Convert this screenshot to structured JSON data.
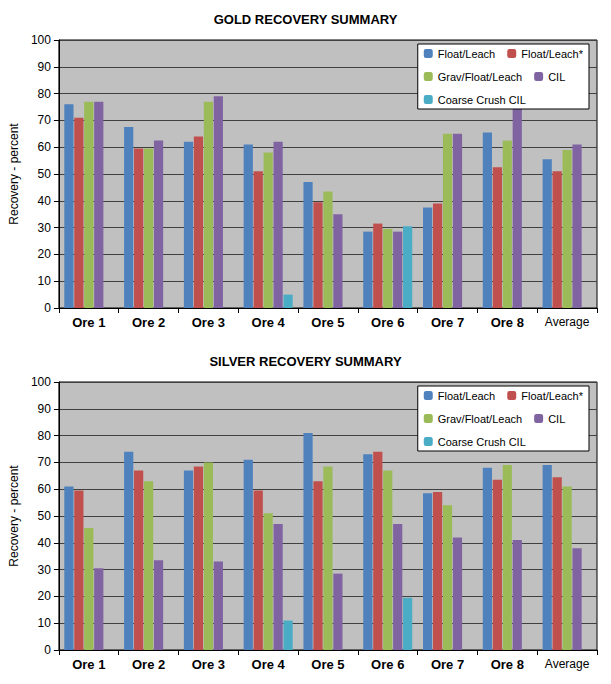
{
  "chart_data": [
    {
      "type": "bar",
      "title": "GOLD RECOVERY SUMMARY",
      "y_label": "Recovery - percent",
      "categories": [
        "Ore 1",
        "Ore 2",
        "Ore 3",
        "Ore 4",
        "Ore 5",
        "Ore 6",
        "Ore 7",
        "Ore 8",
        "Average"
      ],
      "series": [
        {
          "name": "Float/Leach",
          "color": "#4F81BD",
          "values": [
            76,
            67.5,
            62,
            61,
            47,
            28.5,
            37.5,
            65.5,
            55.5
          ]
        },
        {
          "name": "Float/Leach*",
          "color": "#C0504D",
          "values": [
            71,
            59.5,
            64,
            51,
            39.5,
            31.5,
            39,
            52.5,
            51
          ]
        },
        {
          "name": "Grav/Float/Leach",
          "color": "#9BBB59",
          "values": [
            77,
            59.5,
            77,
            58,
            43.5,
            29.5,
            65,
            62.5,
            59
          ]
        },
        {
          "name": "CIL",
          "color": "#8064A2",
          "values": [
            77,
            62.5,
            79,
            62,
            35,
            28.5,
            65,
            77,
            61
          ]
        },
        {
          "name": "Coarse Crush CIL",
          "color": "#4BACC6",
          "values": [
            null,
            null,
            null,
            5,
            null,
            30.5,
            null,
            null,
            null
          ]
        }
      ],
      "ylim": [
        0,
        100
      ],
      "yticks": [
        0,
        10,
        20,
        30,
        40,
        50,
        60,
        70,
        80,
        90,
        100
      ],
      "grid": true,
      "legend": "upper right"
    },
    {
      "type": "bar",
      "title": "SILVER RECOVERY SUMMARY",
      "y_label": "Recovery - percent",
      "categories": [
        "Ore 1",
        "Ore 2",
        "Ore 3",
        "Ore 4",
        "Ore 5",
        "Ore 6",
        "Ore 7",
        "Ore 8",
        "Average"
      ],
      "series": [
        {
          "name": "Float/Leach",
          "color": "#4F81BD",
          "values": [
            61,
            74,
            67,
            71,
            81,
            73,
            58.5,
            68,
            69
          ]
        },
        {
          "name": "Float/Leach*",
          "color": "#C0504D",
          "values": [
            59.5,
            67,
            68.5,
            59.5,
            63,
            74,
            59,
            63.5,
            64.5
          ]
        },
        {
          "name": "Grav/Float/Leach",
          "color": "#9BBB59",
          "values": [
            45.5,
            63,
            70,
            51,
            68.5,
            67,
            54,
            69,
            61
          ]
        },
        {
          "name": "CIL",
          "color": "#8064A2",
          "values": [
            30.5,
            33.5,
            33,
            47,
            28.5,
            47,
            42,
            41,
            38
          ]
        },
        {
          "name": "Coarse Crush CIL",
          "color": "#4BACC6",
          "values": [
            null,
            null,
            null,
            11,
            null,
            19.5,
            null,
            null,
            null
          ]
        }
      ],
      "ylim": [
        0,
        100
      ],
      "yticks": [
        0,
        10,
        20,
        30,
        40,
        50,
        60,
        70,
        80,
        90,
        100
      ],
      "grid": true,
      "legend": "upper right"
    }
  ]
}
